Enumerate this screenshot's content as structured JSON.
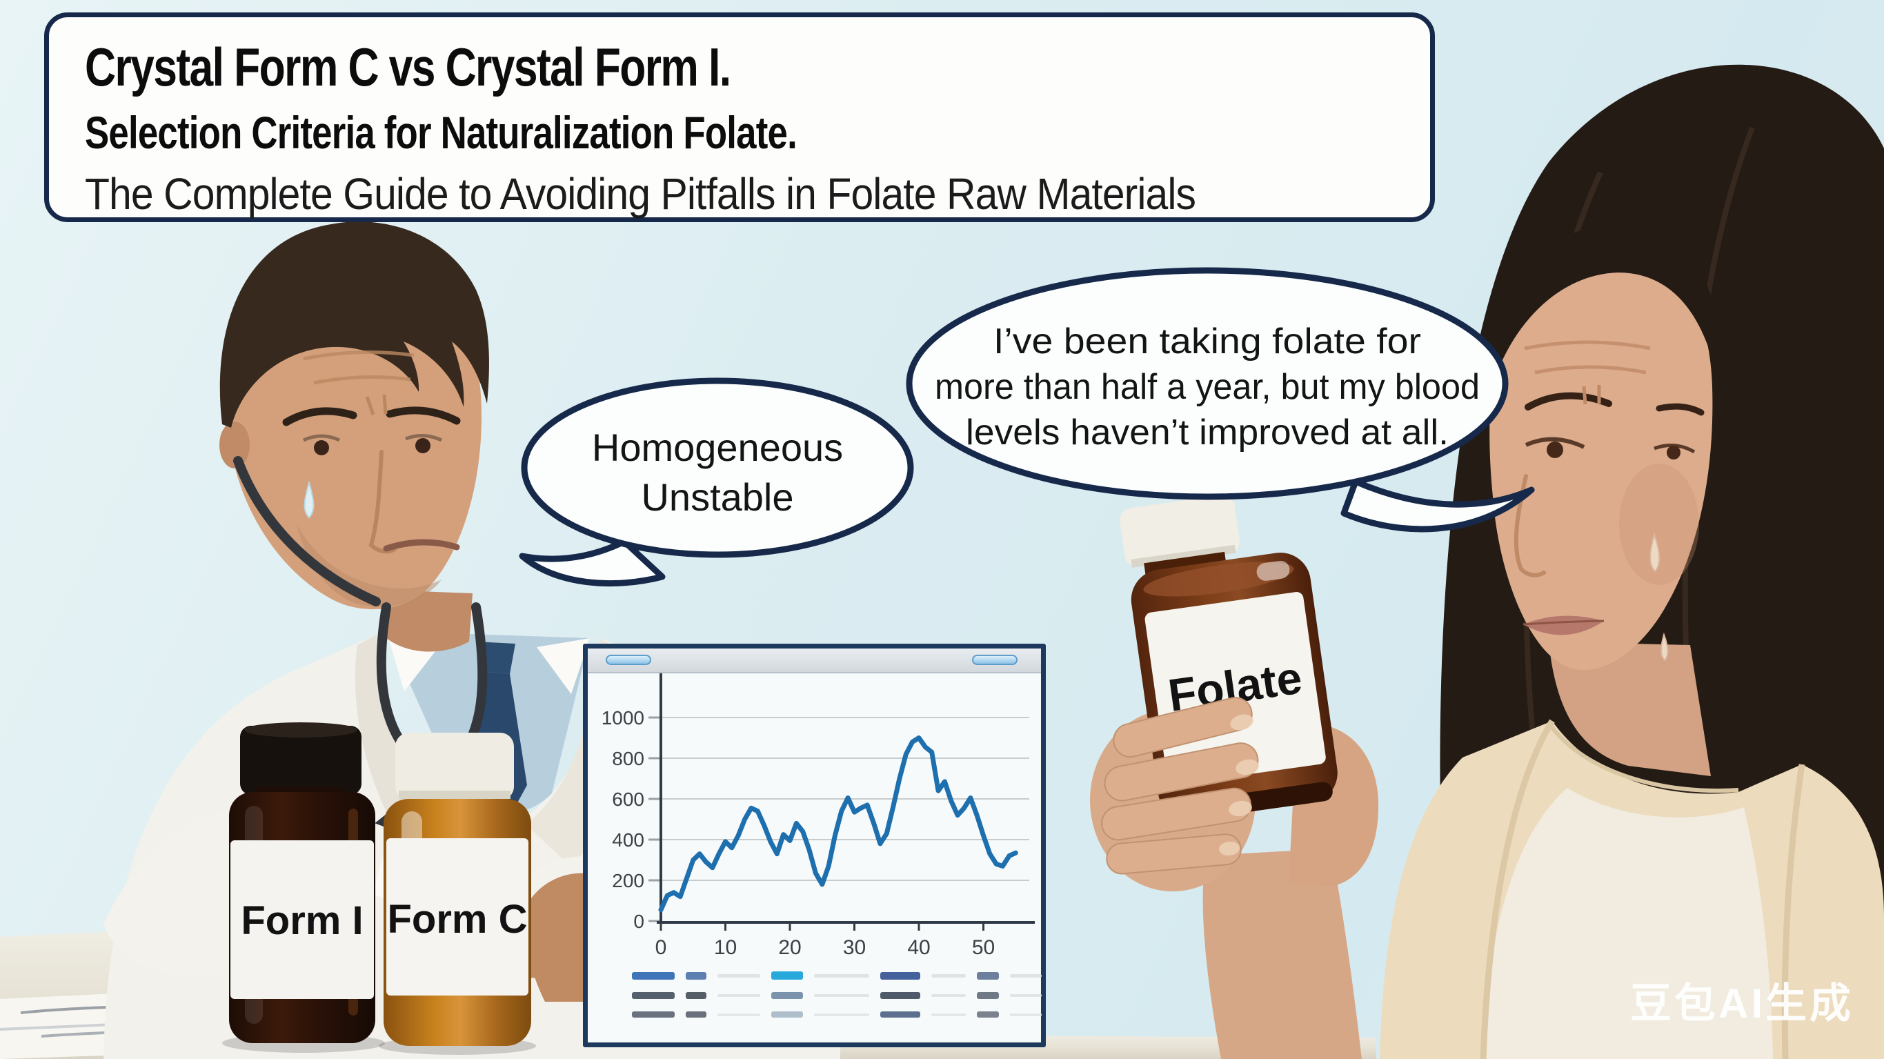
{
  "scene": {
    "background": "#dcedf1",
    "desk_color": "#eae6da",
    "watermark_text": "豆包AI生成"
  },
  "title_box": {
    "border_color": "#17294a",
    "line1": "Crystal Form C vs Crystal Form I.",
    "line2": "Selection Criteria for Naturalization Folate.",
    "line3": "The Complete Guide to Avoiding Pitfalls in Folate Raw Materials"
  },
  "speech_bubbles": {
    "doctor_bubble": {
      "line1": "Homogeneous",
      "line2": "Unstable"
    },
    "patient_bubble": {
      "line1": "I’ve been taking folate for",
      "line2": "more than half a year, but my blood",
      "line3": "levels haven’t improved at all."
    }
  },
  "bottles": {
    "form_i": {
      "label": "Form I"
    },
    "form_c": {
      "label": "Form C"
    },
    "folate": {
      "label": "Folate"
    }
  },
  "chart_data": {
    "type": "line",
    "title": "",
    "xlabel": "",
    "ylabel": "",
    "x_start": 0,
    "x_step": 1,
    "values": [
      55,
      125,
      140,
      120,
      210,
      300,
      330,
      290,
      262,
      330,
      390,
      360,
      420,
      500,
      555,
      540,
      470,
      390,
      330,
      425,
      395,
      480,
      440,
      350,
      235,
      180,
      270,
      420,
      540,
      605,
      535,
      555,
      570,
      480,
      380,
      430,
      560,
      700,
      820,
      880,
      900,
      855,
      830,
      640,
      685,
      590,
      520,
      555,
      605,
      520,
      420,
      330,
      280,
      270,
      320,
      335
    ],
    "xticks": [
      0,
      10,
      20,
      30,
      40,
      50
    ],
    "yticks": [
      0,
      200,
      400,
      600,
      800,
      1000
    ],
    "xlim": [
      0,
      57
    ],
    "ylim": [
      0,
      1100
    ],
    "grid": true,
    "legend_position": "none",
    "line_color": "#1e6fae",
    "axis_color": "#2f3b47",
    "grid_color": "#c8cccd",
    "tick_label_color": "#3a4045"
  },
  "mini_table": {
    "rows": [
      [
        {
          "w": 62,
          "h": 11,
          "c": "#3f74b8"
        },
        {
          "w": 30,
          "h": 11,
          "c": "#5d7fb0"
        },
        {
          "w": 62,
          "h": 5,
          "c": "#dfe3e6"
        },
        {
          "w": 46,
          "h": 12,
          "c": "#27a9dc"
        },
        {
          "w": 80,
          "h": 5,
          "c": "#dfe3e6"
        },
        {
          "w": 58,
          "h": 11,
          "c": "#45619c"
        },
        {
          "w": 50,
          "h": 5,
          "c": "#dfe3e6"
        },
        {
          "w": 32,
          "h": 11,
          "c": "#6d7f9c"
        },
        {
          "w": 46,
          "h": 5,
          "c": "#dfe3e6"
        }
      ],
      [
        {
          "w": 62,
          "h": 10,
          "c": "#55606e"
        },
        {
          "w": 30,
          "h": 10,
          "c": "#565e68"
        },
        {
          "w": 62,
          "h": 4,
          "c": "#e2e5e8"
        },
        {
          "w": 46,
          "h": 10,
          "c": "#7c93ad"
        },
        {
          "w": 80,
          "h": 4,
          "c": "#e2e5e8"
        },
        {
          "w": 58,
          "h": 10,
          "c": "#4e5a6a"
        },
        {
          "w": 50,
          "h": 4,
          "c": "#e2e5e8"
        },
        {
          "w": 32,
          "h": 10,
          "c": "#707a86"
        },
        {
          "w": 46,
          "h": 4,
          "c": "#e2e5e8"
        }
      ],
      [
        {
          "w": 62,
          "h": 9,
          "c": "#6a7280"
        },
        {
          "w": 30,
          "h": 9,
          "c": "#6a707b"
        },
        {
          "w": 62,
          "h": 4,
          "c": "#e4e7ea"
        },
        {
          "w": 46,
          "h": 9,
          "c": "#aebecb"
        },
        {
          "w": 80,
          "h": 4,
          "c": "#e4e7ea"
        },
        {
          "w": 58,
          "h": 9,
          "c": "#5c6f8e"
        },
        {
          "w": 50,
          "h": 4,
          "c": "#e4e7ea"
        },
        {
          "w": 32,
          "h": 9,
          "c": "#7b828e"
        },
        {
          "w": 46,
          "h": 4,
          "c": "#e4e7ea"
        }
      ]
    ]
  }
}
